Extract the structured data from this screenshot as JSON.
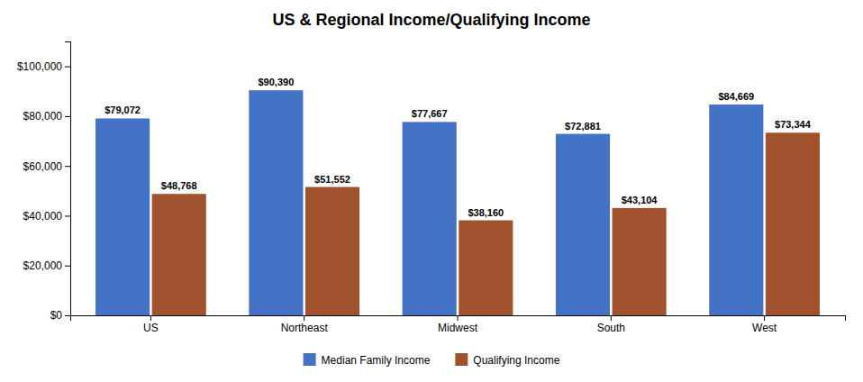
{
  "chart_data": {
    "type": "bar",
    "title": "US & Regional Income/Qualifying Income",
    "categories": [
      "US",
      "Northeast",
      "Midwest",
      "South",
      "West"
    ],
    "series": [
      {
        "name": "Median Family Income",
        "color": "#4472C4",
        "values": [
          79072,
          90390,
          77667,
          72881,
          84669
        ],
        "value_labels": [
          "$79,072",
          "$90,390",
          "$77,667",
          "$72,881",
          "$84,669"
        ]
      },
      {
        "name": "Qualifying Income",
        "color": "#A0522D",
        "values": [
          48768,
          51552,
          38160,
          43104,
          73344
        ],
        "value_labels": [
          "$48,768",
          "$51,552",
          "$38,160",
          "$43,104",
          "$73,344"
        ]
      }
    ],
    "ylim": [
      0,
      110000
    ],
    "yticks": [
      {
        "value": 0,
        "label": "$0"
      },
      {
        "value": 20000,
        "label": "$20,000"
      },
      {
        "value": 40000,
        "label": "$40,000"
      },
      {
        "value": 60000,
        "label": "$60,000"
      },
      {
        "value": 80000,
        "label": "$80,000"
      },
      {
        "value": 100000,
        "label": "$100,000"
      }
    ],
    "grid": false,
    "legend": "bottom",
    "data_labels": true
  }
}
